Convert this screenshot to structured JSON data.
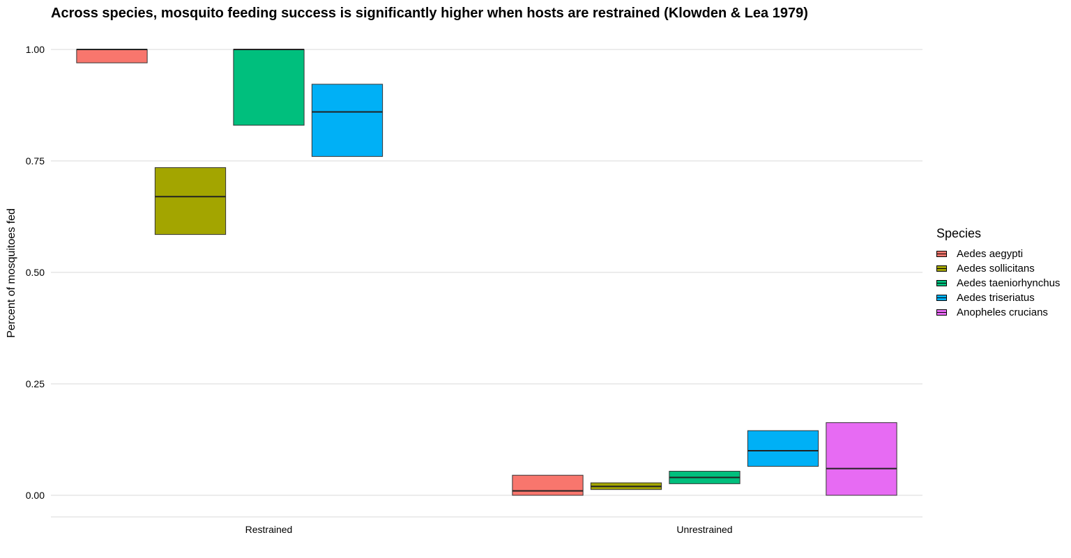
{
  "chart_data": {
    "type": "boxplot",
    "title": "Across species, mosquito feeding success is significantly higher when hosts are restrained (Klowden & Lea 1979)",
    "xlabel": "",
    "ylabel": "Percent of mosquitoes fed",
    "ylim": [
      -0.048,
      1.045
    ],
    "yticks": [
      0.0,
      0.25,
      0.5,
      0.75,
      1.0
    ],
    "ytick_labels": [
      "0.00",
      "0.25",
      "0.50",
      "0.75",
      "1.00"
    ],
    "categories": [
      "Restrained",
      "Unrestrained"
    ],
    "grid": "horizontal major",
    "legend_position": "right",
    "legend_title": "Species",
    "series": [
      {
        "name": "Aedes aegypti",
        "color": "#F8766D",
        "boxes": [
          {
            "lower": 0.97,
            "median": 1.0,
            "upper": 1.0
          },
          {
            "lower": 0.0,
            "median": 0.01,
            "upper": 0.045
          }
        ]
      },
      {
        "name": "Aedes sollicitans",
        "color": "#A3A500",
        "boxes": [
          {
            "lower": 0.585,
            "median": 0.67,
            "upper": 0.735
          },
          {
            "lower": 0.013,
            "median": 0.02,
            "upper": 0.028
          }
        ]
      },
      {
        "name": "Aedes taeniorhynchus",
        "color": "#00BF7D",
        "boxes": [
          {
            "lower": 0.83,
            "median": 1.0,
            "upper": 1.0
          },
          {
            "lower": 0.026,
            "median": 0.04,
            "upper": 0.054
          }
        ]
      },
      {
        "name": "Aedes triseriatus",
        "color": "#00B0F6",
        "boxes": [
          {
            "lower": 0.76,
            "median": 0.86,
            "upper": 0.922
          },
          {
            "lower": 0.065,
            "median": 0.1,
            "upper": 0.145
          }
        ]
      },
      {
        "name": "Anopheles crucians",
        "color": "#E76BF3",
        "boxes": [
          null,
          {
            "lower": 0.0,
            "median": 0.06,
            "upper": 0.163
          }
        ]
      }
    ]
  }
}
